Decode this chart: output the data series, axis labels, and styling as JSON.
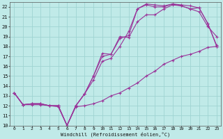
{
  "xlabel": "Windchill (Refroidissement éolien,°C)",
  "bg_color": "#c0eae8",
  "grid_color": "#9fd4d2",
  "line_color": "#993399",
  "xlim": [
    -0.5,
    23.5
  ],
  "ylim": [
    10,
    22.5
  ],
  "xticks": [
    0,
    1,
    2,
    3,
    4,
    5,
    6,
    7,
    8,
    9,
    10,
    11,
    12,
    13,
    14,
    15,
    16,
    17,
    18,
    19,
    20,
    21,
    22,
    23
  ],
  "yticks": [
    10,
    11,
    12,
    13,
    14,
    15,
    16,
    17,
    18,
    19,
    20,
    21,
    22
  ],
  "line1_x": [
    0,
    1,
    2,
    3,
    4,
    5,
    6,
    7,
    8,
    9,
    10,
    11,
    12,
    13,
    14,
    15,
    16,
    17,
    18,
    19,
    20,
    21,
    22,
    23
  ],
  "line1_y": [
    13.3,
    12.1,
    12.2,
    12.2,
    12.0,
    12.0,
    10.0,
    12.0,
    13.2,
    15.0,
    17.3,
    17.2,
    19.0,
    18.9,
    20.5,
    21.2,
    21.2,
    21.8,
    22.2,
    22.1,
    21.8,
    21.5,
    20.0,
    19.0
  ],
  "line2_x": [
    0,
    1,
    2,
    3,
    4,
    5,
    6,
    7,
    8,
    9,
    10,
    11,
    12,
    13,
    14,
    15,
    16,
    17,
    18,
    19,
    20,
    21,
    22,
    23
  ],
  "line2_y": [
    13.3,
    12.1,
    12.2,
    12.2,
    12.0,
    12.0,
    10.0,
    12.0,
    13.2,
    15.0,
    17.0,
    17.2,
    18.8,
    19.1,
    21.8,
    22.2,
    22.0,
    22.0,
    22.3,
    22.2,
    22.1,
    21.9,
    20.3,
    18.0
  ],
  "line3_x": [
    0,
    1,
    2,
    3,
    4,
    5,
    6,
    7,
    8,
    9,
    10,
    11,
    12,
    13,
    14,
    15,
    16,
    17,
    18,
    19,
    20,
    21,
    22,
    23
  ],
  "line3_y": [
    13.3,
    12.1,
    12.2,
    12.2,
    12.0,
    12.0,
    10.0,
    12.0,
    13.2,
    14.6,
    16.5,
    16.8,
    18.0,
    19.5,
    21.8,
    22.3,
    22.2,
    22.1,
    22.3,
    22.1,
    21.8,
    21.9,
    20.3,
    18.1
  ],
  "line4_x": [
    0,
    1,
    2,
    3,
    4,
    5,
    6,
    7,
    8,
    9,
    10,
    11,
    12,
    13,
    14,
    15,
    16,
    17,
    18,
    19,
    20,
    21,
    22,
    23
  ],
  "line4_y": [
    13.3,
    12.1,
    12.1,
    12.1,
    12.0,
    11.9,
    10.0,
    11.9,
    12.0,
    12.2,
    12.5,
    13.0,
    13.3,
    13.8,
    14.3,
    15.0,
    15.5,
    16.2,
    16.6,
    17.0,
    17.2,
    17.5,
    17.9,
    18.0
  ]
}
